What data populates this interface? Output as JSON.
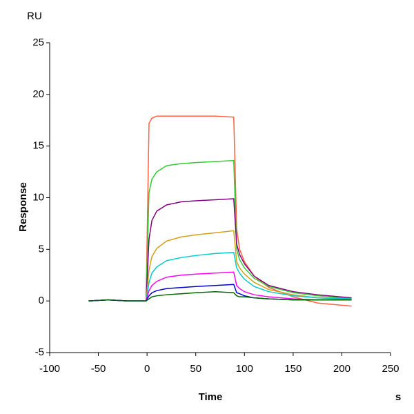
{
  "chart_data": {
    "type": "line",
    "y_unit": "RU",
    "ylabel": "Response",
    "xlabel": "Time",
    "x_unit": "s",
    "x": [
      -60,
      -40,
      -20,
      -1,
      2,
      5,
      10,
      20,
      35,
      50,
      70,
      89,
      92,
      95,
      100,
      110,
      125,
      150,
      175,
      210
    ],
    "series": [
      {
        "color": "#ff6040",
        "values": [
          0,
          0.1,
          0,
          0,
          17.2,
          17.7,
          17.9,
          17.9,
          17.9,
          17.9,
          17.9,
          17.8,
          7,
          5,
          3.8,
          2.4,
          1.3,
          0.4,
          -0.2,
          -0.5
        ]
      },
      {
        "color": "#33cc33",
        "values": [
          0,
          0.1,
          0,
          0,
          10.5,
          11.8,
          12.5,
          13.1,
          13.3,
          13.4,
          13.5,
          13.6,
          5,
          4,
          3.2,
          2.2,
          1.4,
          0.8,
          0.5,
          0.2
        ]
      },
      {
        "color": "#800080",
        "values": [
          0,
          0.1,
          0,
          0,
          6,
          7.8,
          8.7,
          9.3,
          9.6,
          9.7,
          9.8,
          9.9,
          5.5,
          4.5,
          3.6,
          2.4,
          1.5,
          0.9,
          0.6,
          0.3
        ]
      },
      {
        "color": "#d4a017",
        "values": [
          0,
          0.1,
          0,
          0,
          3,
          4.3,
          5.1,
          5.8,
          6.2,
          6.4,
          6.6,
          6.8,
          3.8,
          3.2,
          2.6,
          1.8,
          1.1,
          0.6,
          0.3,
          0.1
        ]
      },
      {
        "color": "#00cccc",
        "values": [
          0,
          0.1,
          0,
          0,
          1.8,
          2.7,
          3.3,
          3.9,
          4.2,
          4.4,
          4.6,
          4.7,
          3.2,
          2.7,
          2.1,
          1.4,
          0.9,
          0.5,
          0.3,
          0.2
        ]
      },
      {
        "color": "#ff00ff",
        "values": [
          0,
          0.1,
          0,
          0,
          1.0,
          1.5,
          1.9,
          2.3,
          2.5,
          2.6,
          2.7,
          2.8,
          1.5,
          1.2,
          0.9,
          0.6,
          0.4,
          0.2,
          0.1,
          0.1
        ]
      },
      {
        "color": "#0000cc",
        "values": [
          0,
          0.1,
          0,
          0,
          0.5,
          0.8,
          1.0,
          1.2,
          1.3,
          1.4,
          1.5,
          1.6,
          0.8,
          0.7,
          0.5,
          0.3,
          0.2,
          0.1,
          0.1,
          0.1
        ]
      },
      {
        "color": "#006400",
        "values": [
          0,
          0.1,
          0,
          0,
          0.2,
          0.4,
          0.5,
          0.6,
          0.7,
          0.8,
          0.9,
          0.8,
          0.5,
          0.4,
          0.4,
          0.3,
          0.2,
          0.1,
          0.1,
          0.1
        ]
      }
    ],
    "xlim": [
      -100,
      250
    ],
    "xticks": [
      -100,
      -50,
      0,
      50,
      100,
      150,
      200,
      250
    ],
    "ylim": [
      -5,
      25
    ],
    "yticks": [
      -5,
      0,
      5,
      10,
      15,
      20,
      25
    ]
  }
}
